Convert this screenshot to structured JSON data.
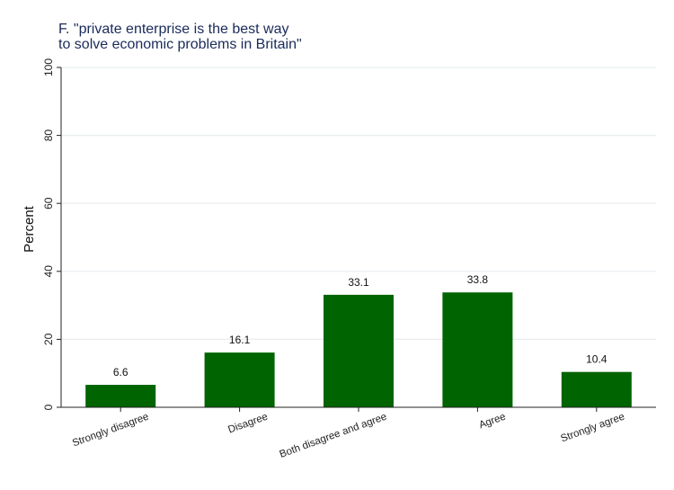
{
  "chart_data": {
    "type": "bar",
    "title_lines": [
      "F. \"private enterprise is the best way",
      "to solve economic problems in Britain\""
    ],
    "xlabel": "",
    "ylabel": "Percent",
    "ylim": [
      0,
      100
    ],
    "yticks": [
      0,
      20,
      40,
      60,
      80,
      100
    ],
    "grid": true,
    "categories": [
      "Strongly disagree",
      "Disagree",
      "Both disagree and agree",
      "Agree",
      "Strongly agree"
    ],
    "values": [
      6.6,
      16.1,
      33.1,
      33.8,
      10.4
    ],
    "value_labels": [
      "6.6",
      "16.1",
      "33.1",
      "33.8",
      "10.4"
    ],
    "bar_color": "#006400",
    "grid_color": "#e8edf0",
    "title_color": "#1a2a5a"
  }
}
